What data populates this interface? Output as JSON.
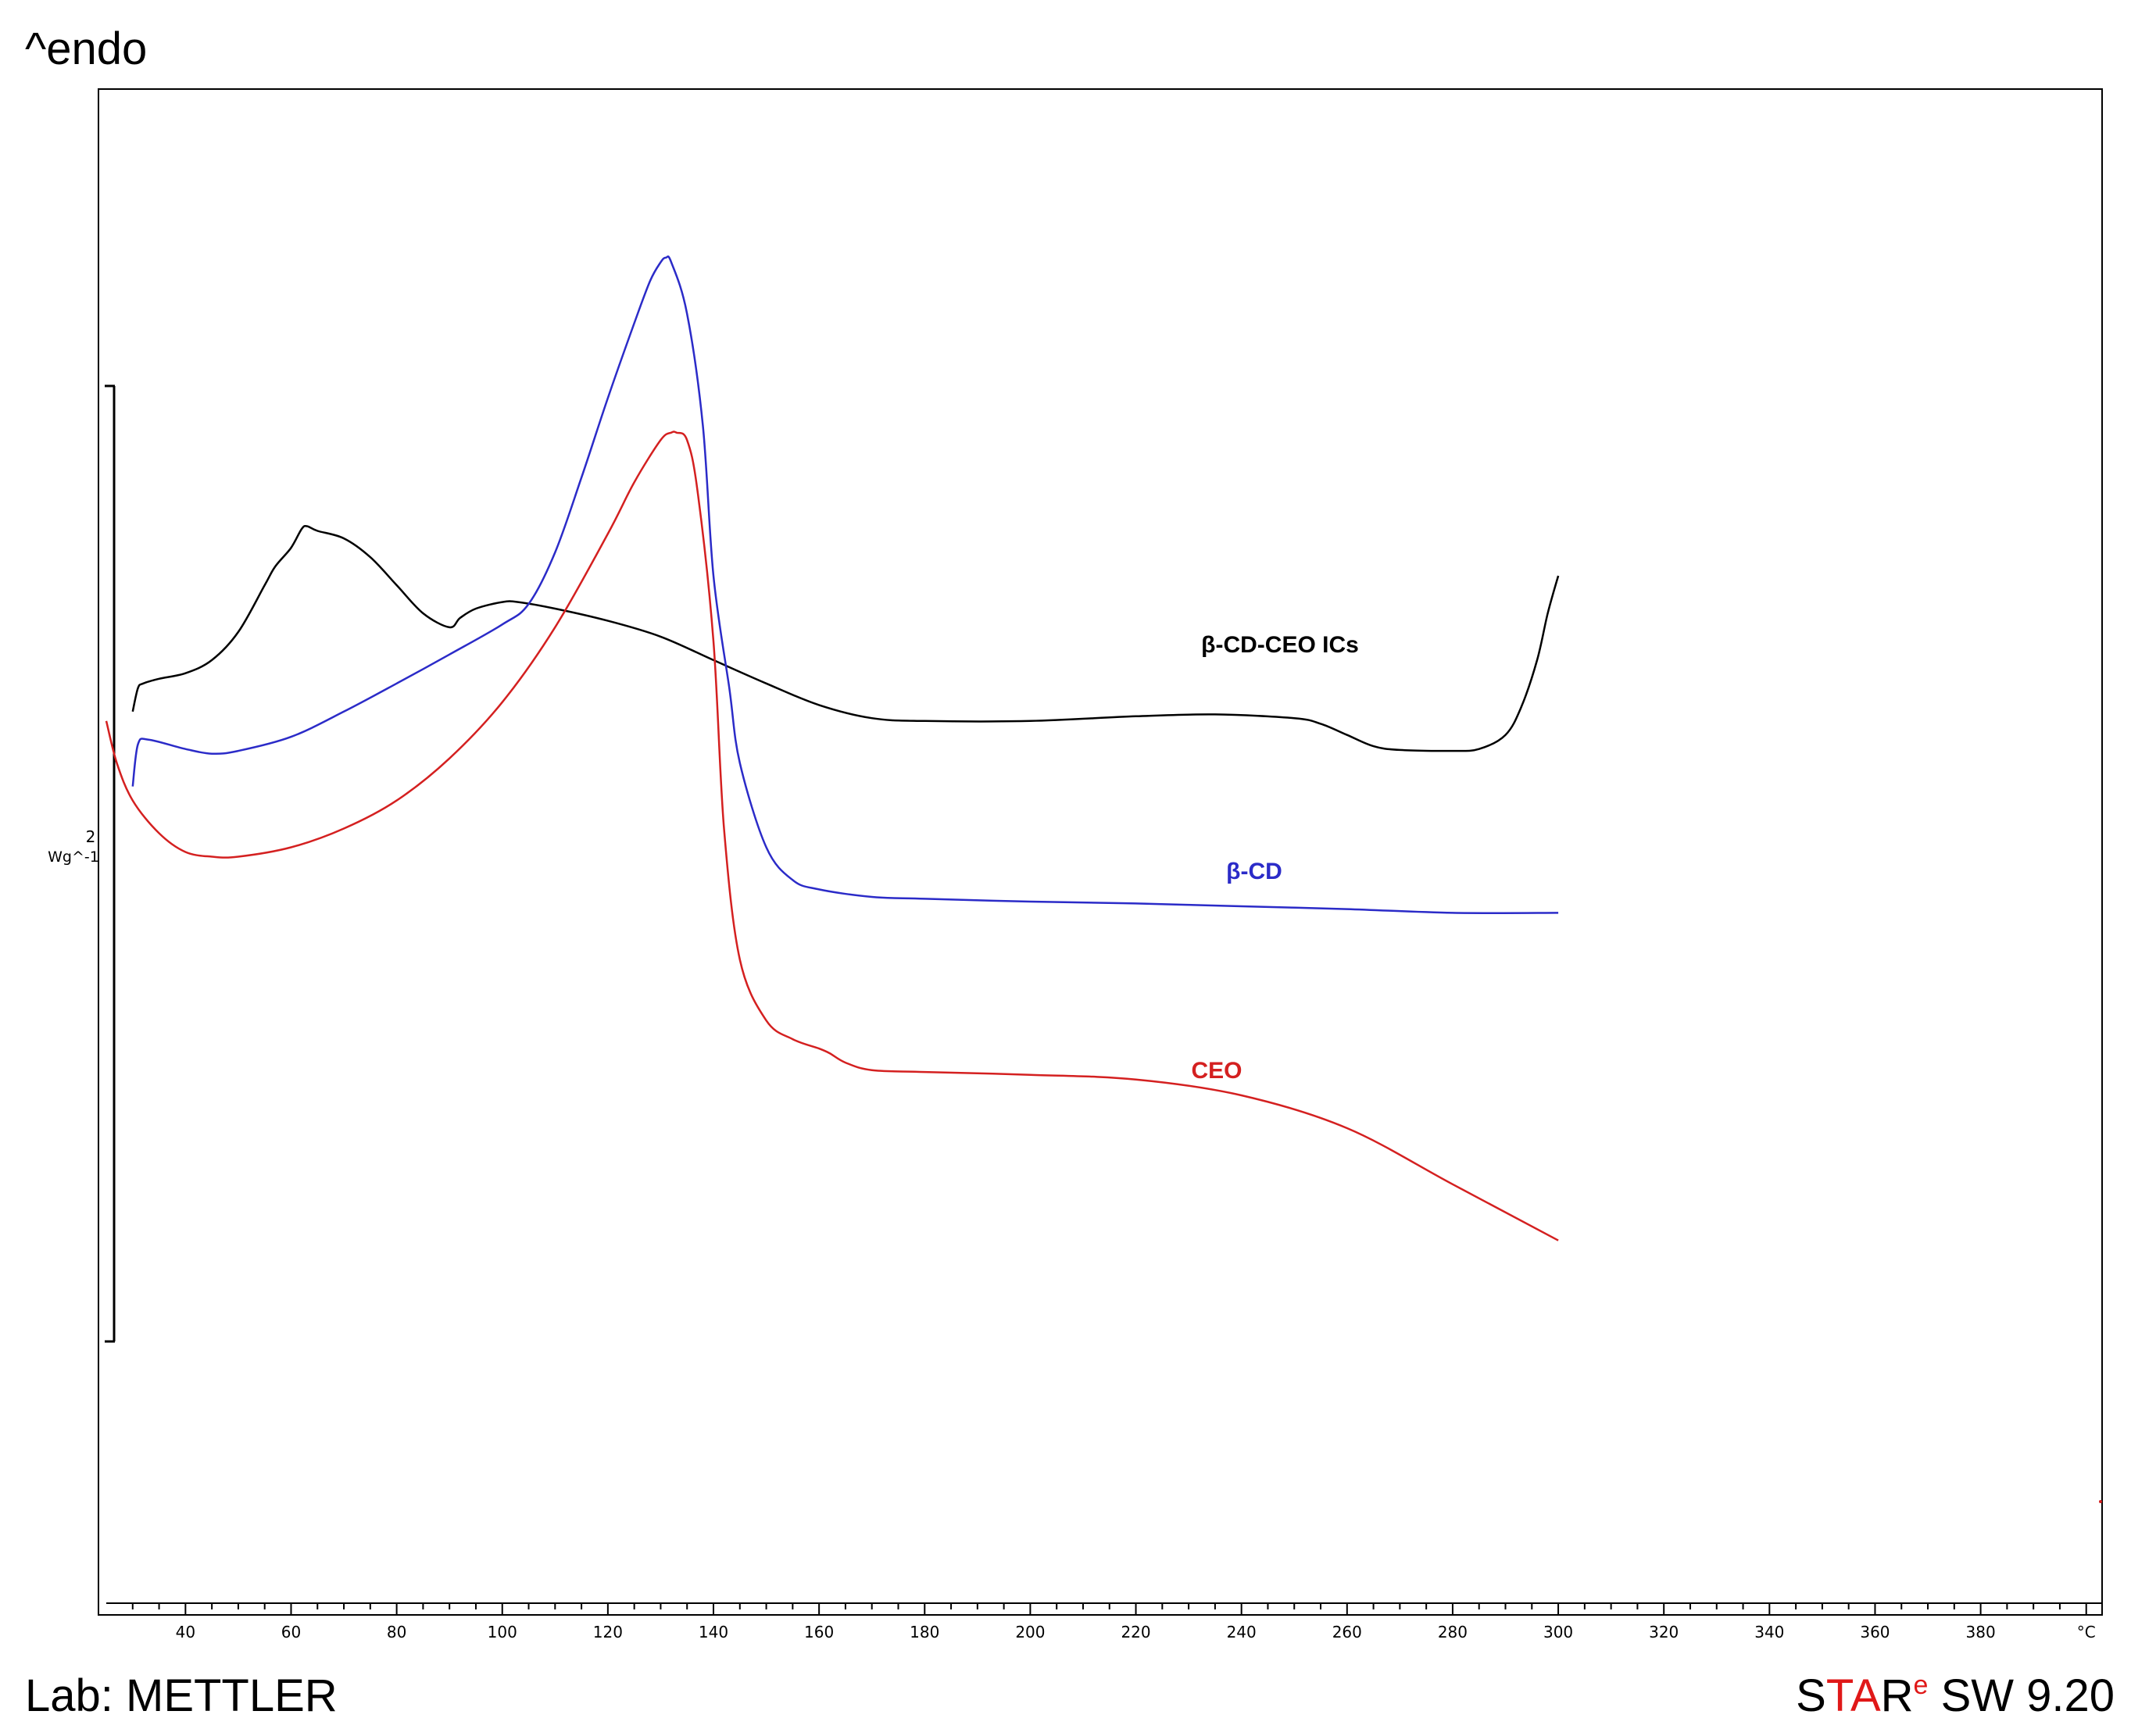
{
  "header": {
    "endo_label": "^endo"
  },
  "footer": {
    "lab_label": "Lab: METTLER",
    "software": {
      "s": "S",
      "ta": "TA",
      "r": "R",
      "e": "e",
      "rest": " SW 9.20"
    }
  },
  "colors": {
    "black_series": "#000000",
    "blue_series": "#2b2bc8",
    "red_series": "#d42020",
    "brand_red": "#e01818"
  },
  "chart_data": {
    "type": "line",
    "title": "",
    "xlabel": "°C",
    "ylabel": "Wg^-1",
    "scale_bar": {
      "value_label": "2",
      "unit_label": "Wg^-1"
    },
    "xlim": [
      25,
      403
    ],
    "x_ticks": [
      {
        "value": 40,
        "label": "40"
      },
      {
        "value": 60,
        "label": "60"
      },
      {
        "value": 80,
        "label": "80"
      },
      {
        "value": 100,
        "label": "100"
      },
      {
        "value": 120,
        "label": "120"
      },
      {
        "value": 140,
        "label": "140"
      },
      {
        "value": 160,
        "label": "160"
      },
      {
        "value": 180,
        "label": "180"
      },
      {
        "value": 200,
        "label": "200"
      },
      {
        "value": 220,
        "label": "220"
      },
      {
        "value": 240,
        "label": "240"
      },
      {
        "value": 260,
        "label": "260"
      },
      {
        "value": 280,
        "label": "280"
      },
      {
        "value": 300,
        "label": "300"
      },
      {
        "value": 320,
        "label": "320"
      },
      {
        "value": 340,
        "label": "340"
      },
      {
        "value": 360,
        "label": "360"
      },
      {
        "value": 380,
        "label": "380"
      },
      {
        "value": 400,
        "label": "°C"
      }
    ],
    "ylim": [
      -9.6,
      6.7
    ],
    "series": [
      {
        "name": "β-CD-CEO ICs",
        "color": "#000000",
        "x": [
          30,
          31,
          32,
          35,
          40,
          45,
          50,
          55,
          57,
          60,
          62,
          63,
          65,
          70,
          75,
          80,
          85,
          90,
          92,
          95,
          100,
          103,
          110,
          120,
          130,
          140,
          150,
          160,
          170,
          180,
          200,
          220,
          235,
          250,
          255,
          260,
          265,
          270,
          280,
          285,
          290,
          293,
          296,
          298,
          300
        ],
        "y": [
          0.05,
          0.3,
          0.35,
          0.4,
          0.46,
          0.6,
          0.9,
          1.4,
          1.6,
          1.8,
          2.0,
          2.03,
          1.98,
          1.9,
          1.7,
          1.4,
          1.1,
          0.95,
          1.05,
          1.15,
          1.22,
          1.22,
          1.15,
          1.02,
          0.85,
          0.6,
          0.35,
          0.12,
          -0.02,
          -0.05,
          -0.05,
          0.0,
          0.02,
          -0.02,
          -0.08,
          -0.2,
          -0.32,
          -0.36,
          -0.37,
          -0.35,
          -0.2,
          0.1,
          0.6,
          1.1,
          1.5
        ]
      },
      {
        "name": "β-CD",
        "color": "#2b2bc8",
        "x": [
          30,
          31,
          33,
          40,
          45,
          50,
          60,
          70,
          80,
          90,
          100,
          105,
          110,
          115,
          120,
          125,
          128,
          130,
          131,
          132,
          135,
          138,
          140,
          143,
          145,
          150,
          155,
          160,
          170,
          180,
          200,
          220,
          240,
          260,
          280,
          300
        ],
        "y": [
          -0.75,
          -0.3,
          -0.25,
          -0.35,
          -0.4,
          -0.37,
          -0.22,
          0.05,
          0.35,
          0.66,
          0.98,
          1.2,
          1.75,
          2.55,
          3.4,
          4.2,
          4.65,
          4.85,
          4.9,
          4.85,
          4.3,
          3.1,
          1.5,
          0.3,
          -0.5,
          -1.4,
          -1.75,
          -1.85,
          -1.93,
          -1.95,
          -1.98,
          -2.0,
          -2.03,
          -2.06,
          -2.1,
          -2.1
        ]
      },
      {
        "name": "CEO",
        "color": "#d42020",
        "x": [
          25,
          27,
          30,
          35,
          40,
          45,
          50,
          60,
          70,
          80,
          90,
          100,
          110,
          120,
          125,
          130,
          132,
          133,
          135,
          137,
          140,
          142,
          145,
          150,
          155,
          160,
          162,
          165,
          170,
          180,
          200,
          220,
          240,
          260,
          280,
          300
        ],
        "y": [
          -0.05,
          -0.5,
          -0.9,
          -1.25,
          -1.45,
          -1.5,
          -1.5,
          -1.4,
          -1.2,
          -0.9,
          -0.45,
          0.15,
          0.95,
          1.95,
          2.5,
          2.95,
          3.03,
          3.03,
          2.95,
          2.4,
          0.8,
          -1.2,
          -2.6,
          -3.25,
          -3.45,
          -3.55,
          -3.6,
          -3.7,
          -3.78,
          -3.8,
          -3.83,
          -3.88,
          -4.05,
          -4.4,
          -5.0,
          -5.6
        ]
      }
    ]
  }
}
